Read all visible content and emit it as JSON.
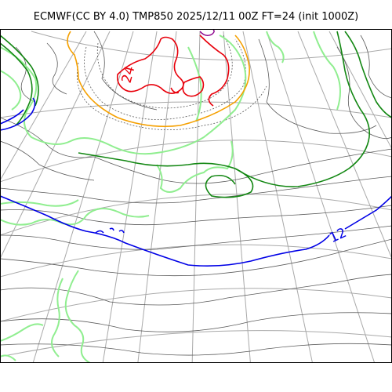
{
  "title": "ECMWF(CC BY 4.0) TMP850 2025/12/11 00Z FT=24 (init 1000Z)",
  "contour_labels": [
    {
      "text": "24",
      "color": "#e8000b"
    },
    {
      "text": "12",
      "color": "#0000e6"
    }
  ],
  "colors": {
    "graticule": "#a9a9a9",
    "isotherm_thin": "#5a5a5a",
    "isotherm_red": "#e8000b",
    "isotherm_orange": "#f5a000",
    "isotherm_green": "#128712",
    "isotherm_lightgreen": "#90ee90",
    "isotherm_blue": "#0000e6",
    "isotherm_purple": "#8b008b"
  }
}
